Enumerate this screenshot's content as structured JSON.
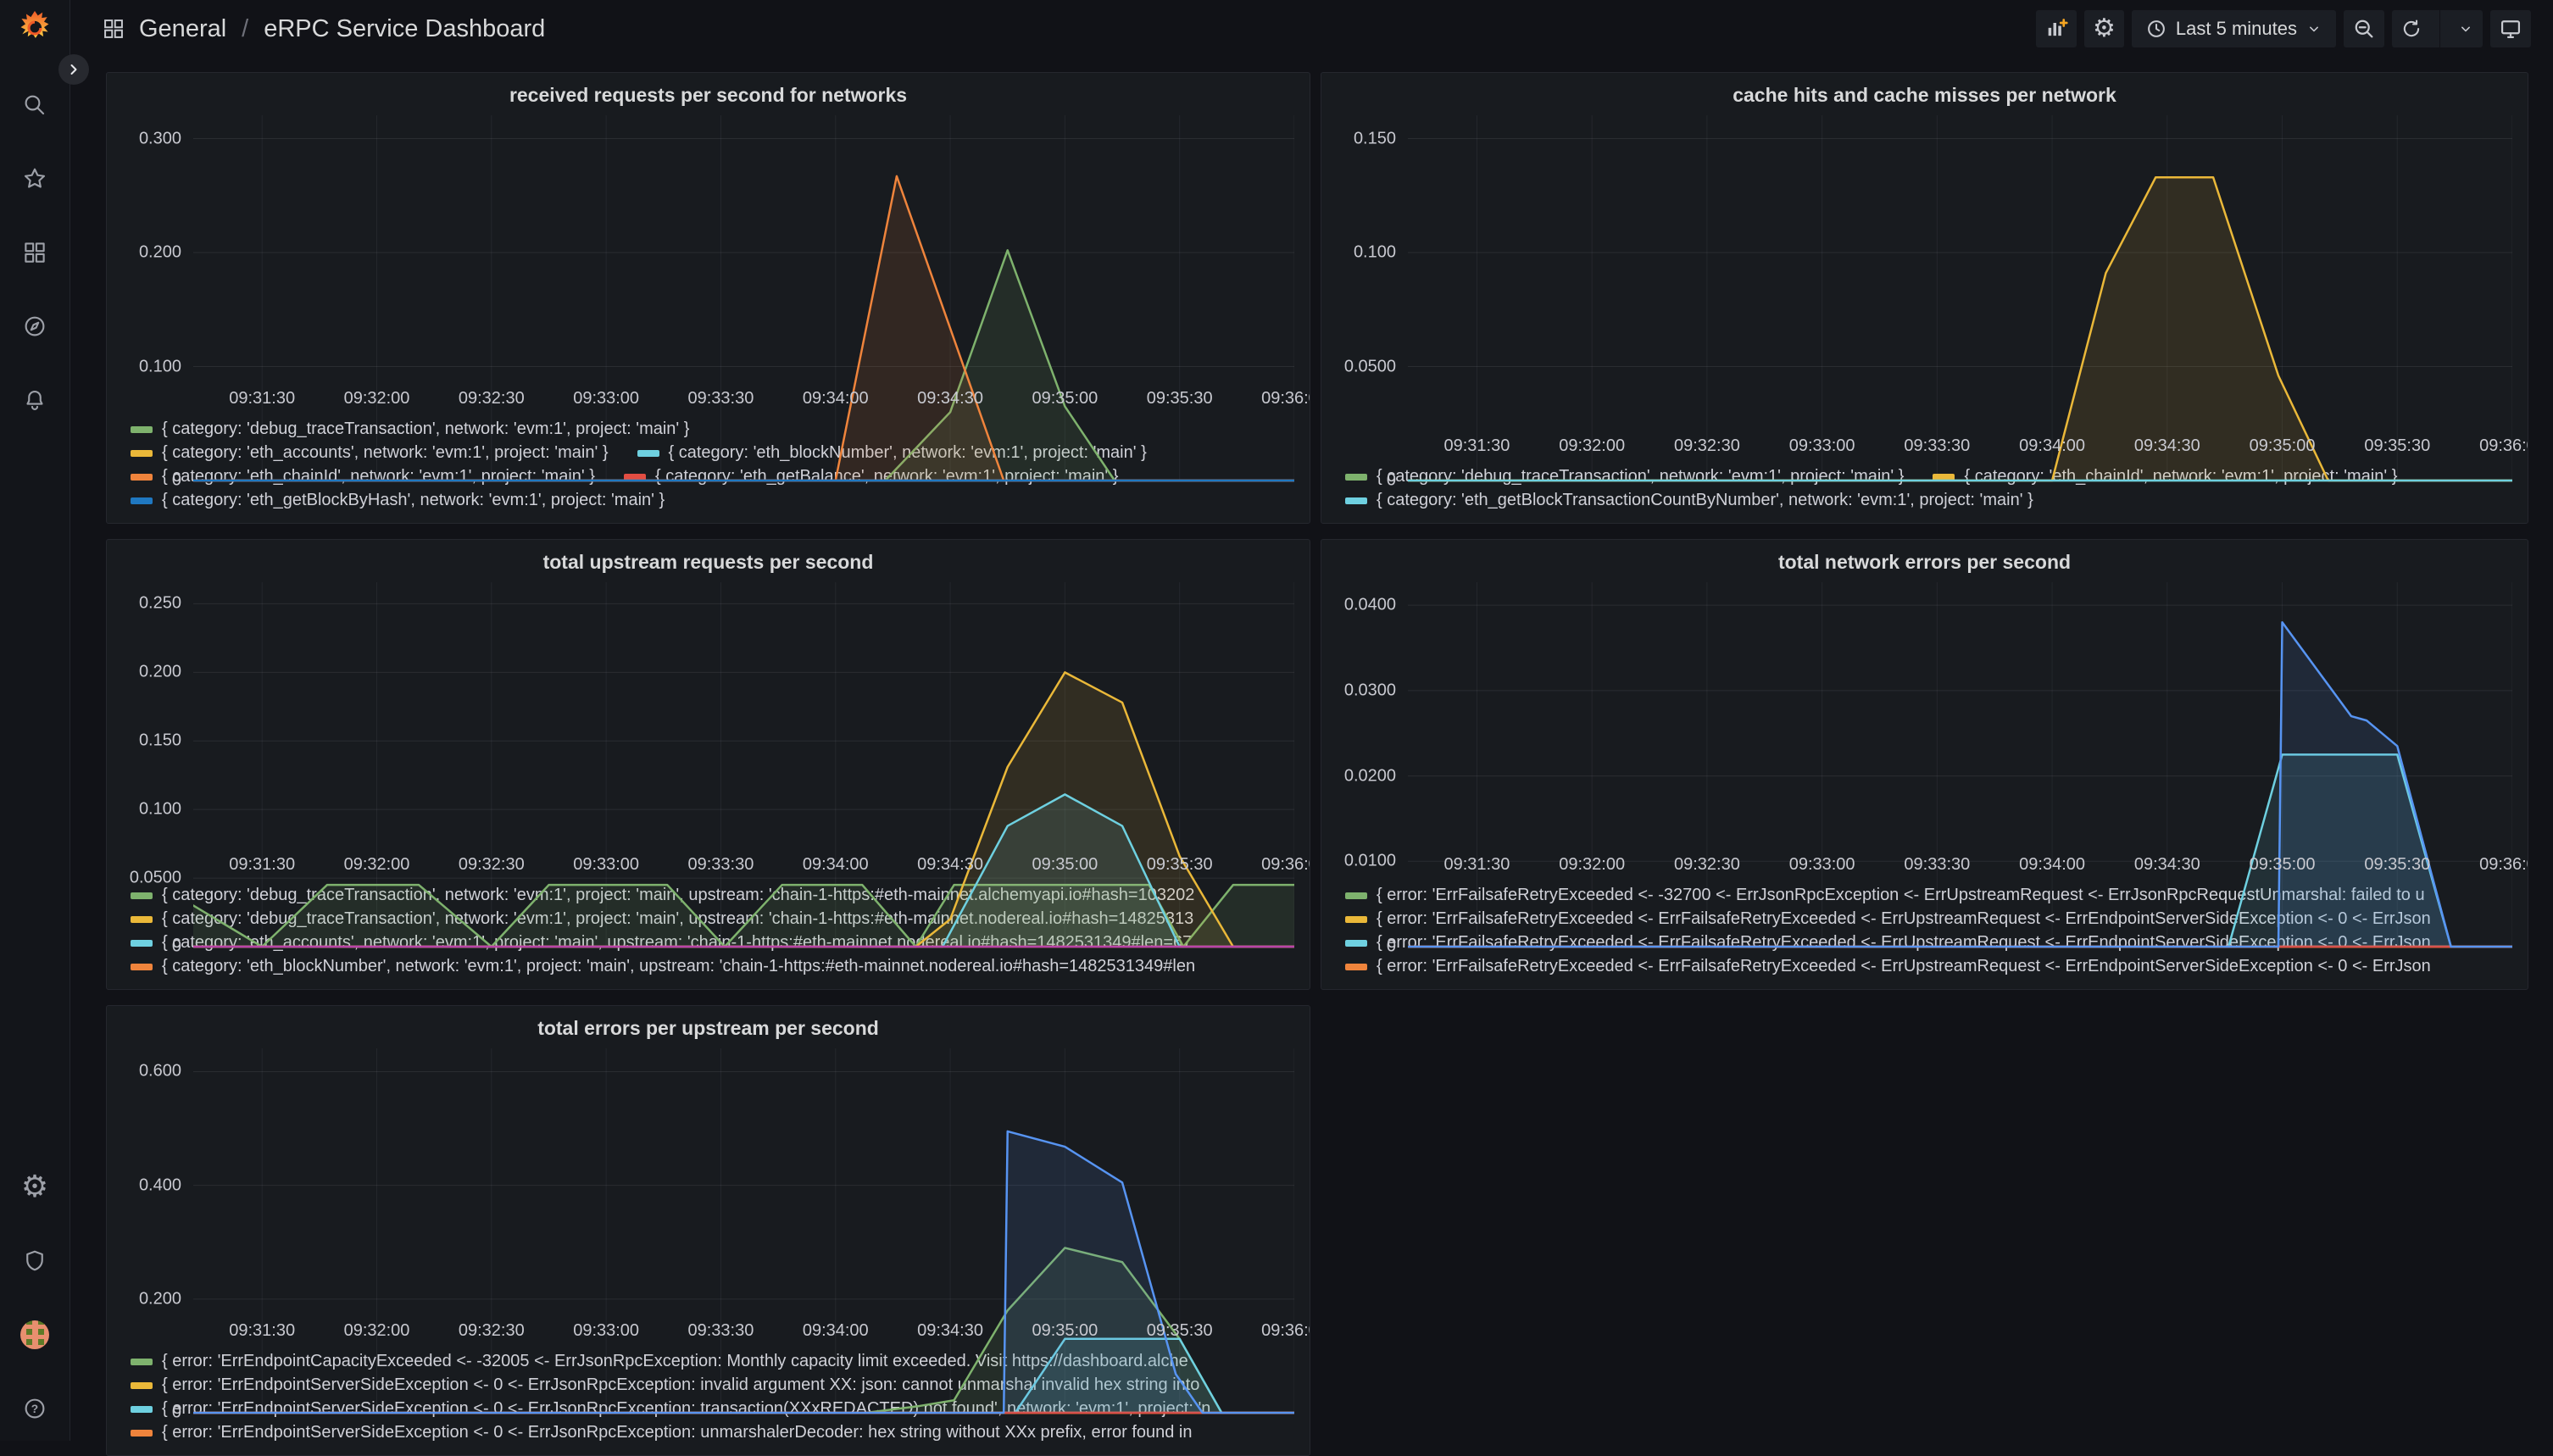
{
  "nav": {
    "breadcrumb": {
      "section": "General",
      "separator": "/",
      "title": "eRPC Service Dashboard"
    },
    "toolbar": {
      "time_range": "Last 5 minutes",
      "icons": [
        "add-panel",
        "dashboard-settings",
        "time-range-clock",
        "zoom-out",
        "refresh",
        "refresh-interval-chevron",
        "view-mode"
      ]
    }
  },
  "sidebar": {
    "top_icons": [
      "grafana-logo",
      "search",
      "starred",
      "dashboards",
      "explore",
      "alerting"
    ],
    "bottom_icons": [
      "configuration-gear",
      "server-admin-shield",
      "user-avatar",
      "help"
    ]
  },
  "colors": {
    "green": "#7EB26D",
    "yellow": "#EAB839",
    "cyan": "#6ED0E0",
    "orange": "#EF843C",
    "red": "#E24D42",
    "blue": "#1F78C1",
    "light_blue": "#5794F2",
    "purple": "#BA43A9",
    "accent_plus": "#F5A623",
    "panel_bg": "#181B1F",
    "page_bg": "#111217"
  },
  "chart_data": {
    "type": "area",
    "xdomain": [
      72,
      360
    ],
    "x_ticks": [
      {
        "t": 90,
        "label": "09:31:30"
      },
      {
        "t": 120,
        "label": "09:32:00"
      },
      {
        "t": 150,
        "label": "09:32:30"
      },
      {
        "t": 180,
        "label": "09:33:00"
      },
      {
        "t": 210,
        "label": "09:33:30"
      },
      {
        "t": 240,
        "label": "09:34:00"
      },
      {
        "t": 270,
        "label": "09:34:30"
      },
      {
        "t": 300,
        "label": "09:35:00"
      },
      {
        "t": 330,
        "label": "09:35:30"
      },
      {
        "t": 360,
        "label": "09:36:00"
      }
    ],
    "panels": [
      {
        "title": "received requests per second for networks",
        "ymax": 0.316,
        "y_ticks": [
          {
            "v": 0,
            "label": "0"
          },
          {
            "v": 0.1,
            "label": "0.100"
          },
          {
            "v": 0.2,
            "label": "0.200"
          },
          {
            "v": 0.3,
            "label": "0.300"
          }
        ],
        "series": [
          {
            "name": "{ category: 'debug_traceTransaction', network: 'evm:1', project: 'main' }",
            "color": "#7EB26D",
            "points": [
              [
                72,
                0
              ],
              [
                253,
                0
              ],
              [
                270,
                0.06
              ],
              [
                285,
                0.202
              ],
              [
                300,
                0.065
              ],
              [
                313,
                0
              ],
              [
                360,
                0
              ]
            ]
          },
          {
            "name": "{ category: 'eth_accounts', network: 'evm:1', project: 'main' }",
            "color": "#EAB839",
            "points": [
              [
                72,
                0
              ],
              [
                360,
                0
              ]
            ]
          },
          {
            "name": "{ category: 'eth_blockNumber', network: 'evm:1', project: 'main' }",
            "color": "#6ED0E0",
            "points": [
              [
                72,
                0
              ],
              [
                360,
                0
              ]
            ]
          },
          {
            "name": "{ category: 'eth_chainId', network: 'evm:1', project: 'main' }",
            "color": "#EF843C",
            "points": [
              [
                72,
                0
              ],
              [
                240,
                0
              ],
              [
                256,
                0.267
              ],
              [
                284,
                0
              ],
              [
                360,
                0
              ]
            ]
          },
          {
            "name": "{ category: 'eth_getBalance', network: 'evm:1', project: 'main' }",
            "color": "#E24D42",
            "points": [
              [
                72,
                0
              ],
              [
                360,
                0
              ]
            ]
          },
          {
            "name": "{ category: 'eth_getBlockByHash', network: 'evm:1', project: 'main' }",
            "color": "#1F78C1",
            "points": [
              [
                72,
                0
              ],
              [
                360,
                0
              ]
            ]
          }
        ],
        "legend_rows": [
          [
            0
          ],
          [
            1,
            2
          ],
          [
            3,
            4
          ],
          [
            5
          ]
        ]
      },
      {
        "title": "cache hits and cache misses per network",
        "ymax": 0.158,
        "y_ticks": [
          {
            "v": 0,
            "label": "0"
          },
          {
            "v": 0.05,
            "label": "0.0500"
          },
          {
            "v": 0.1,
            "label": "0.100"
          },
          {
            "v": 0.15,
            "label": "0.150"
          }
        ],
        "series": [
          {
            "name": "{ category: 'debug_traceTransaction', network: 'evm:1', project: 'main' }",
            "color": "#7EB26D",
            "points": [
              [
                72,
                0
              ],
              [
                360,
                0
              ]
            ]
          },
          {
            "name": "{ category: 'eth_chainId', network: 'evm:1', project: 'main' }",
            "color": "#EAB839",
            "points": [
              [
                72,
                0
              ],
              [
                240,
                0
              ],
              [
                254,
                0.091
              ],
              [
                267,
                0.133
              ],
              [
                282,
                0.133
              ],
              [
                299,
                0.046
              ],
              [
                312,
                0
              ],
              [
                360,
                0
              ]
            ]
          },
          {
            "name": "{ category: 'eth_getBlockTransactionCountByNumber', network: 'evm:1', project: 'main' }",
            "color": "#6ED0E0",
            "points": [
              [
                72,
                0
              ],
              [
                360,
                0
              ]
            ]
          }
        ],
        "legend_rows": [
          [
            0,
            1
          ],
          [
            2
          ]
        ]
      },
      {
        "title": "total upstream requests per second",
        "ymax": 0.262,
        "y_ticks": [
          {
            "v": 0,
            "label": "0"
          },
          {
            "v": 0.05,
            "label": "0.0500"
          },
          {
            "v": 0.1,
            "label": "0.100"
          },
          {
            "v": 0.15,
            "label": "0.150"
          },
          {
            "v": 0.2,
            "label": "0.200"
          },
          {
            "v": 0.25,
            "label": "0.250"
          }
        ],
        "series": [
          {
            "name": "{ category: 'debug_traceTransaction', network: 'evm:1', project: 'main', upstream: 'chain-1-https:#eth-mainnet.alchemyapi.io#hash=103202",
            "color": "#7EB26D",
            "points": [
              [
                72,
                0.03
              ],
              [
                90,
                0
              ],
              [
                107,
                0.045
              ],
              [
                131,
                0.045
              ],
              [
                150,
                0
              ],
              [
                165,
                0.045
              ],
              [
                196,
                0.045
              ],
              [
                211,
                0
              ],
              [
                226,
                0.045
              ],
              [
                247,
                0.045
              ],
              [
                261,
                0
              ],
              [
                271,
                0.045
              ],
              [
                322,
                0.045
              ],
              [
                331,
                0
              ],
              [
                344,
                0.045
              ],
              [
                360,
                0.045
              ]
            ]
          },
          {
            "name": "{ category: 'debug_traceTransaction', network: 'evm:1', project: 'main', upstream: 'chain-1-https:#eth-mainnet.nodereal.io#hash=14825313",
            "color": "#EAB839",
            "points": [
              [
                72,
                0
              ],
              [
                261,
                0
              ],
              [
                270,
                0.02
              ],
              [
                285,
                0.131
              ],
              [
                300,
                0.2
              ],
              [
                315,
                0.178
              ],
              [
                330,
                0.066
              ],
              [
                344,
                0
              ],
              [
                360,
                0
              ]
            ]
          },
          {
            "name": "{ category: 'eth_accounts', network: 'evm:1', project: 'main', upstream: 'chain-1-https:#eth-mainnet.nodereal.io#hash=1482531349#len=67",
            "color": "#6ED0E0",
            "points": [
              [
                72,
                0
              ],
              [
                268,
                0
              ],
              [
                285,
                0.088
              ],
              [
                300,
                0.111
              ],
              [
                315,
                0.088
              ],
              [
                330,
                0
              ],
              [
                360,
                0
              ]
            ]
          },
          {
            "name": "{ category: 'eth_blockNumber', network: 'evm:1', project: 'main', upstream: 'chain-1-https:#eth-mainnet.nodereal.io#hash=1482531349#len",
            "color": "#EF843C",
            "points": [
              [
                72,
                0
              ],
              [
                360,
                0
              ]
            ]
          },
          {
            "name": "",
            "color": "#BA43A9",
            "points": [
              [
                72,
                0
              ],
              [
                360,
                0
              ]
            ]
          }
        ],
        "legend_rows": [
          [
            0
          ],
          [
            1
          ],
          [
            2
          ],
          [
            3
          ]
        ]
      },
      {
        "title": "total network errors per second",
        "ymax": 0.0421,
        "y_ticks": [
          {
            "v": 0,
            "label": "0"
          },
          {
            "v": 0.01,
            "label": "0.0100"
          },
          {
            "v": 0.02,
            "label": "0.0200"
          },
          {
            "v": 0.03,
            "label": "0.0300"
          },
          {
            "v": 0.04,
            "label": "0.0400"
          }
        ],
        "series": [
          {
            "name": "{ error: 'ErrFailsafeRetryExceeded <- -32700 <- ErrJsonRpcException <- ErrUpstreamRequest <- ErrJsonRpcRequestUnmarshal: failed to u",
            "color": "#7EB26D",
            "points": [
              [
                72,
                0
              ],
              [
                360,
                0
              ]
            ]
          },
          {
            "name": "{ error: 'ErrFailsafeRetryExceeded <- ErrFailsafeRetryExceeded <- ErrUpstreamRequest <- ErrEndpointServerSideException <- 0 <- ErrJson",
            "color": "#EAB839",
            "points": [
              [
                72,
                0
              ],
              [
                360,
                0
              ]
            ]
          },
          {
            "name": "{ error: 'ErrFailsafeRetryExceeded <- ErrFailsafeRetryExceeded <- ErrUpstreamRequest <- ErrEndpointServerSideException <- 0 <- ErrJson",
            "color": "#6ED0E0",
            "points": [
              [
                72,
                0
              ],
              [
                286,
                0
              ],
              [
                300,
                0.0225
              ],
              [
                330,
                0.0225
              ],
              [
                344,
                0
              ],
              [
                360,
                0
              ]
            ]
          },
          {
            "name": "{ error: 'ErrFailsafeRetryExceeded <- ErrFailsafeRetryExceeded <- ErrUpstreamRequest <- ErrEndpointServerSideException <- 0 <- ErrJson",
            "color": "#EF843C",
            "points": [
              [
                72,
                0
              ],
              [
                360,
                0
              ]
            ]
          },
          {
            "name": "",
            "color": "#E24D42",
            "points": [
              [
                72,
                0
              ],
              [
                360,
                0
              ]
            ]
          },
          {
            "name": "",
            "color": "#5794F2",
            "points": [
              [
                72,
                0
              ],
              [
                299,
                0
              ],
              [
                300,
                0.038
              ],
              [
                318,
                0.027
              ],
              [
                322,
                0.0265
              ],
              [
                330,
                0.0235
              ],
              [
                344,
                0
              ],
              [
                360,
                0
              ]
            ]
          }
        ],
        "legend_rows": [
          [
            0
          ],
          [
            1
          ],
          [
            2
          ],
          [
            3
          ]
        ]
      },
      {
        "title": "total errors per upstream per second",
        "ymax": 0.632,
        "y_ticks": [
          {
            "v": 0,
            "label": "0"
          },
          {
            "v": 0.2,
            "label": "0.200"
          },
          {
            "v": 0.4,
            "label": "0.400"
          },
          {
            "v": 0.6,
            "label": "0.600"
          }
        ],
        "series": [
          {
            "name": "{ error: 'ErrEndpointCapacityExceeded <- -32005 <- ErrJsonRpcException: Monthly capacity limit exceeded. Visit https://dashboard.alche",
            "color": "#7EB26D",
            "points": [
              [
                72,
                0
              ],
              [
                248,
                0
              ],
              [
                262,
                0.012
              ],
              [
                271,
                0.022
              ],
              [
                285,
                0.18
              ],
              [
                300,
                0.29
              ],
              [
                315,
                0.265
              ],
              [
                330,
                0.13
              ],
              [
                341,
                0
              ],
              [
                360,
                0
              ]
            ]
          },
          {
            "name": "{ error: 'ErrEndpointServerSideException <- 0 <- ErrJsonRpcException: invalid argument XX: json: cannot unmarshal invalid hex string into",
            "color": "#EAB839",
            "points": [
              [
                72,
                0
              ],
              [
                360,
                0
              ]
            ]
          },
          {
            "name": "{ error: 'ErrEndpointServerSideException <- 0 <- ErrJsonRpcException: transaction(XXxREDACTED) not found', network: 'evm:1', project: 'n",
            "color": "#6ED0E0",
            "points": [
              [
                72,
                0
              ],
              [
                287,
                0
              ],
              [
                300,
                0.13
              ],
              [
                330,
                0.13
              ],
              [
                341,
                0
              ],
              [
                360,
                0
              ]
            ]
          },
          {
            "name": "{ error: 'ErrEndpointServerSideException <- 0 <- ErrJsonRpcException: unmarshalerDecoder: hex string without XXx prefix, error found in",
            "color": "#EF843C",
            "points": [
              [
                72,
                0
              ],
              [
                360,
                0
              ]
            ]
          },
          {
            "name": "",
            "color": "#E24D42",
            "points": [
              [
                72,
                0
              ],
              [
                360,
                0
              ]
            ]
          },
          {
            "name": "",
            "color": "#5794F2",
            "points": [
              [
                72,
                0
              ],
              [
                284,
                0
              ],
              [
                285,
                0.495
              ],
              [
                300,
                0.468
              ],
              [
                315,
                0.405
              ],
              [
                329,
                0.068
              ],
              [
                336,
                0
              ],
              [
                360,
                0
              ]
            ]
          }
        ],
        "legend_rows": [
          [
            0
          ],
          [
            1
          ],
          [
            2
          ],
          [
            3
          ]
        ]
      }
    ]
  }
}
